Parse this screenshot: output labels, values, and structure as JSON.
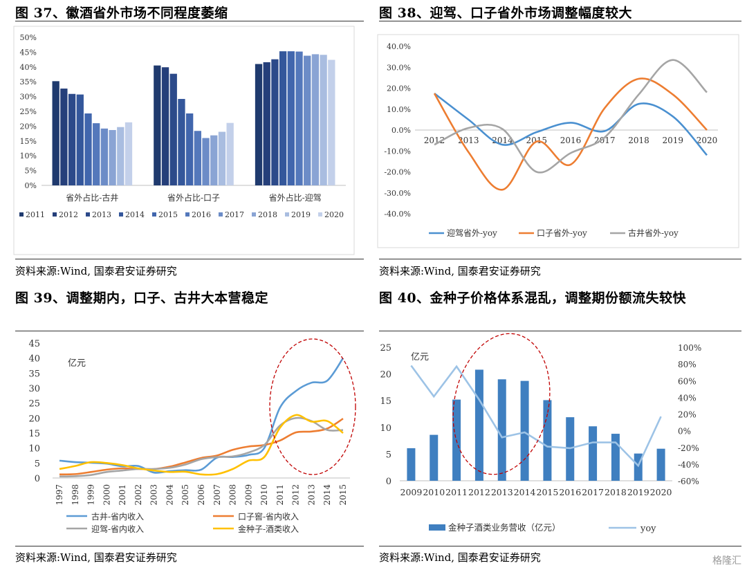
{
  "panels": {
    "p37": {
      "title": "图 37、徽酒省外市场不同程度萎缩",
      "source": "资料来源:Wind, 国泰君安证券研究"
    },
    "p38": {
      "title": "图 38、迎驾、口子省外市场调整幅度较大",
      "source": "资料来源:Wind, 国泰君安证券研究"
    },
    "p39": {
      "title": "图 39、调整期内，口子、古井大本营稳定",
      "source": "资料来源:Wind, 国泰君安证券研究"
    },
    "p40": {
      "title": "图 40、金种子价格体系混乱，调整期份额流失较快",
      "source": "资料来源:Wind, 国泰君安证券研究"
    }
  },
  "watermark": "格隆汇",
  "chart_data": [
    {
      "id": "chart37",
      "type": "bar",
      "categories": [
        "省外占比-古井",
        "省外占比-口子",
        "省外占比-迎驾"
      ],
      "series": [
        {
          "name": "2011",
          "color": "#1f3a6e",
          "values": [
            35.2,
            40.5,
            41.0
          ]
        },
        {
          "name": "2012",
          "color": "#253f7a",
          "values": [
            32.7,
            39.9,
            41.6
          ]
        },
        {
          "name": "2013",
          "color": "#2c4a8a",
          "values": [
            30.9,
            37.7,
            42.6
          ]
        },
        {
          "name": "2014",
          "color": "#34579b",
          "values": [
            30.7,
            29.2,
            45.3
          ]
        },
        {
          "name": "2015",
          "color": "#4166ad",
          "values": [
            24.3,
            24.3,
            45.3
          ]
        },
        {
          "name": "2016",
          "color": "#5478bb",
          "values": [
            21.0,
            18.4,
            45.2
          ]
        },
        {
          "name": "2017",
          "color": "#6c8cc7",
          "values": [
            19.2,
            16.0,
            43.8
          ]
        },
        {
          "name": "2018",
          "color": "#8aa4d4",
          "values": [
            18.7,
            16.9,
            44.3
          ]
        },
        {
          "name": "2019",
          "color": "#a9bde0",
          "values": [
            19.7,
            18.1,
            44.1
          ]
        },
        {
          "name": "2020",
          "color": "#c3d0ea",
          "values": [
            21.3,
            21.1,
            42.4
          ]
        }
      ],
      "ylim": [
        0,
        50
      ],
      "yticks": [
        "0%",
        "5%",
        "10%",
        "15%",
        "20%",
        "25%",
        "30%",
        "35%",
        "40%",
        "45%",
        "50%"
      ],
      "legend": "bottom"
    },
    {
      "id": "chart38",
      "type": "line",
      "x": [
        "2012",
        "2013",
        "2014",
        "2015",
        "2016",
        "2017",
        "2018",
        "2019",
        "2020"
      ],
      "series": [
        {
          "name": "迎驾省外-yoy",
          "color": "#4a90d0",
          "values": [
            17.5,
            5.0,
            -7.0,
            -1.0,
            3.5,
            -0.5,
            12.5,
            6.5,
            -12.0
          ]
        },
        {
          "name": "口子省外-yoy",
          "color": "#ed7d31",
          "values": [
            17.5,
            -10.5,
            -28.5,
            -5.5,
            -16.5,
            10.5,
            24.5,
            17.0,
            0.0
          ]
        },
        {
          "name": "古井省外-yoy",
          "color": "#a5a5a5",
          "values": [
            -7.0,
            1.0,
            0.5,
            -20.0,
            -11.0,
            -3.5,
            17.0,
            33.5,
            18.0
          ]
        }
      ],
      "ylim": [
        -40,
        40
      ],
      "yticks": [
        "40.0%",
        "30.0%",
        "20.0%",
        "10.0%",
        "0.0%",
        "-10.0%",
        "-20.0%",
        "-30.0%",
        "-40.0%"
      ],
      "legend": "bottom"
    },
    {
      "id": "chart39",
      "type": "line",
      "unit": "亿元",
      "x": [
        "1997",
        "1998",
        "1999",
        "2000",
        "2001",
        "2002",
        "2003",
        "2004",
        "2005",
        "2006",
        "2007",
        "2008",
        "2009",
        "2010",
        "2011",
        "2012",
        "2013",
        "2014",
        "2015"
      ],
      "series": [
        {
          "name": "古井-省内收入",
          "color": "#5b9bd5",
          "values": [
            5.8,
            5.3,
            5.1,
            4.8,
            3.9,
            4.0,
            1.8,
            2.3,
            2.6,
            2.8,
            6.8,
            7.0,
            7.7,
            10.0,
            23.5,
            29.0,
            31.8,
            32.5,
            40.0
          ]
        },
        {
          "name": "口子窖-省内收入",
          "color": "#ed7d31",
          "values": [
            1.2,
            1.3,
            2.0,
            2.8,
            3.2,
            3.0,
            3.0,
            3.8,
            5.2,
            6.7,
            7.5,
            9.4,
            10.5,
            11.0,
            12.5,
            15.2,
            15.5,
            16.5,
            19.8
          ]
        },
        {
          "name": "迎驾-省内收入",
          "color": "#a5a5a5",
          "values": [
            0.5,
            0.6,
            1.0,
            2.0,
            2.5,
            3.0,
            3.0,
            3.4,
            4.5,
            6.3,
            7.0,
            7.2,
            8.5,
            11.0,
            17.5,
            20.0,
            19.0,
            16.0,
            16.0
          ]
        },
        {
          "name": "金种子-酒类收入",
          "color": "#ffc000",
          "values": [
            3.0,
            4.0,
            5.3,
            5.0,
            4.3,
            3.2,
            2.5,
            2.0,
            2.1,
            1.2,
            1.3,
            3.0,
            5.8,
            7.0,
            16.8,
            21.0,
            18.8,
            19.0,
            15.0
          ]
        }
      ],
      "ylim": [
        0,
        45
      ],
      "yticks": [
        "0",
        "5",
        "10",
        "15",
        "20",
        "25",
        "30",
        "35",
        "40",
        "45"
      ],
      "legend": "bottom"
    },
    {
      "id": "chart40",
      "type": "bar",
      "unit": "亿元",
      "categories": [
        "2009",
        "2010",
        "2011",
        "2012",
        "2013",
        "2014",
        "2015",
        "2016",
        "2017",
        "2018",
        "2019",
        "2020"
      ],
      "series": [
        {
          "name": "金种子酒类业务营收（亿元）",
          "type": "bar",
          "axis": "left",
          "color": "#3f7fc0",
          "values": [
            6.1,
            8.6,
            15.2,
            20.8,
            19.0,
            18.7,
            15.1,
            11.9,
            10.2,
            8.8,
            5.1,
            6.0
          ]
        },
        {
          "name": "yoy",
          "type": "line",
          "axis": "right",
          "color": "#9dc3e6",
          "values": [
            78,
            41,
            77,
            37,
            -8,
            -2,
            -19,
            -21,
            -14,
            -14,
            -42,
            17
          ]
        }
      ],
      "ylim": [
        0,
        25
      ],
      "y2lim": [
        -60,
        100
      ],
      "yticks": [
        "0",
        "5",
        "10",
        "15",
        "20",
        "25"
      ],
      "y2ticks": [
        "-60%",
        "-40%",
        "-20%",
        "0%",
        "20%",
        "40%",
        "60%",
        "80%",
        "100%"
      ],
      "legend": "bottom"
    }
  ]
}
